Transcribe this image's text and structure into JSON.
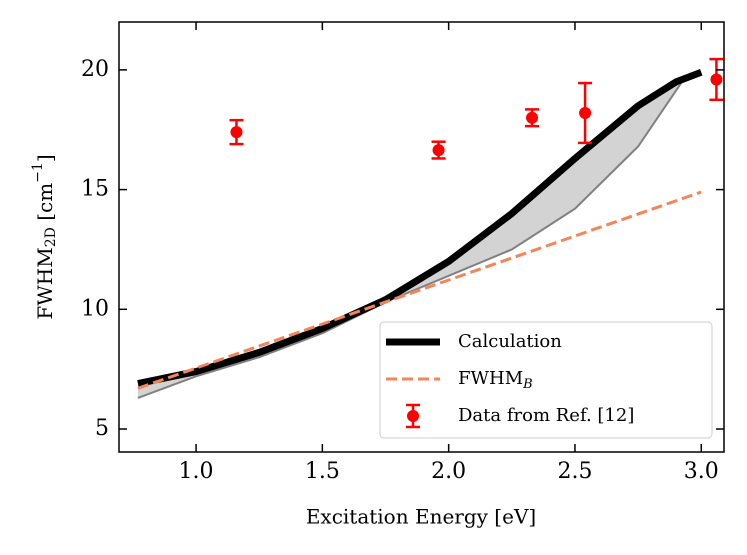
{
  "chart_data": {
    "type": "line",
    "xlabel": "Excitation Energy [eV]",
    "ylabel": {
      "main": "FWHM",
      "sub": "2D",
      "unit": "[cm",
      "sup": "−1",
      "end": "]"
    },
    "xlim": [
      0.695,
      3.09
    ],
    "ylim": [
      4.04,
      22
    ],
    "xticks": [
      {
        "value": 1,
        "label": "1.0"
      },
      1.5,
      {
        "value": 2,
        "label": "2.0"
      },
      2.5,
      {
        "value": 3,
        "label": "3.0"
      }
    ],
    "yticks": [
      5,
      10,
      15,
      20
    ],
    "legend": "lower right",
    "fill_between": {
      "x": [
        0.77,
        1.0,
        1.25,
        1.5,
        1.75,
        2.0,
        2.25,
        2.5,
        2.75,
        2.93
      ],
      "lower": [
        6.3,
        7.2,
        8.0,
        9.0,
        10.3,
        11.4,
        12.5,
        14.2,
        16.8,
        19.6
      ],
      "upper": [
        6.9,
        7.4,
        8.2,
        9.2,
        10.4,
        12.0,
        14.0,
        16.3,
        18.5,
        19.6
      ],
      "color": "#d3d3d3",
      "edge": "#808080"
    },
    "series": [
      {
        "name": "Calculation",
        "kind": "line",
        "color": "#000000",
        "x": [
          0.77,
          1.0,
          1.25,
          1.5,
          1.75,
          2.0,
          2.25,
          2.5,
          2.75,
          2.9,
          3.0
        ],
        "values": [
          6.9,
          7.4,
          8.2,
          9.2,
          10.4,
          12.0,
          14.0,
          16.3,
          18.5,
          19.5,
          19.9
        ]
      },
      {
        "name": "FWHM",
        "name_sub": "B",
        "kind": "dashed",
        "color": "#f4845a",
        "x": [
          0.77,
          3.0
        ],
        "values": [
          6.7,
          14.9
        ]
      },
      {
        "name": "Data from Ref. [12]",
        "kind": "errorbar",
        "color": "#ff0000",
        "x": [
          1.16,
          1.96,
          2.33,
          2.54,
          3.06
        ],
        "values": [
          17.4,
          16.65,
          18.0,
          18.2,
          19.6
        ],
        "errors": [
          0.5,
          0.35,
          0.35,
          1.25,
          0.85
        ]
      }
    ]
  }
}
